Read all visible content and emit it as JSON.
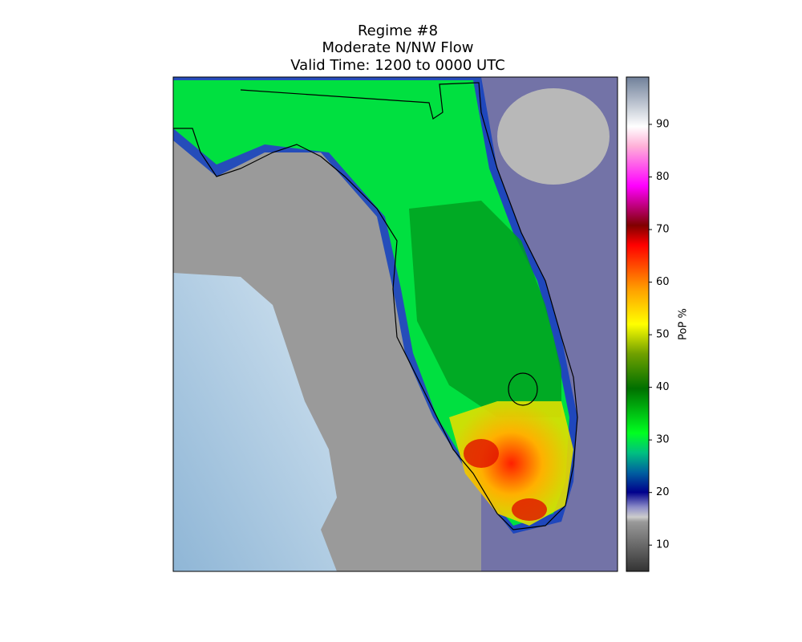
{
  "title_lines": [
    "Regime #8",
    "Moderate N/NW Flow",
    "Valid Time: 1200 to 0000 UTC"
  ],
  "colorbar": {
    "label": "PoP %",
    "clim": [
      5,
      99
    ],
    "ticks": [
      10,
      20,
      30,
      40,
      50,
      60,
      70,
      80,
      90
    ]
  }
}
